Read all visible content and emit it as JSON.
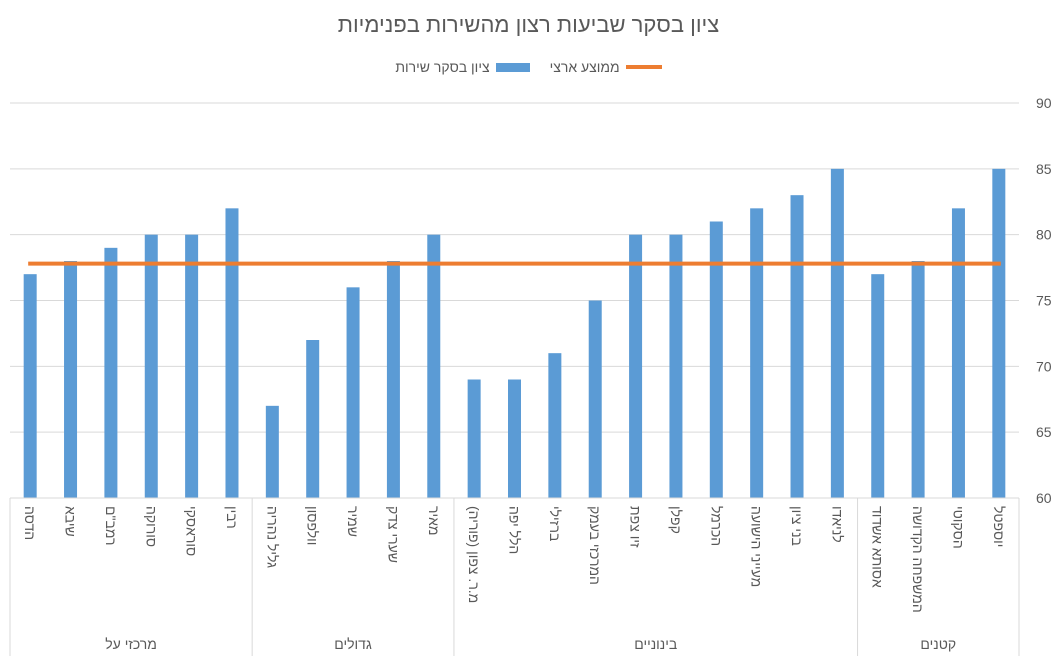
{
  "chart_data": {
    "type": "bar",
    "title": "ציון בסקר שביעות רצון מהשירות בפנימיות",
    "categories": [
      "הדסה",
      "שיבא",
      "רמב\"ם",
      "סורוקה",
      "סוראסקי",
      "רבין",
      "גליל נהריה",
      "וולפסון",
      "שמיר",
      "שערי צדק",
      "מאיר",
      "מ.ר. צפון (פוריה)",
      "הלל יפה",
      "ברזילי",
      "המרכזי בעמק",
      "זיו צפת",
      "קפלן",
      "הכרמל",
      "מעייני הישועה",
      "בני ציון",
      "לניאדו",
      "אסותא אשדוד",
      "המשפחה הקדושה",
      "הסקוטי",
      "יוספטל"
    ],
    "groups": [
      {
        "label": "מרכזי על",
        "count": 6
      },
      {
        "label": "גדולים",
        "count": 5
      },
      {
        "label": "בינוניים",
        "count": 10
      },
      {
        "label": "קטנים",
        "count": 4
      }
    ],
    "series": [
      {
        "name": "ציון בסקר שירות",
        "type": "bar",
        "color": "#5B9BD5",
        "values": [
          77,
          78,
          79,
          80,
          80,
          82,
          67,
          72,
          76,
          78,
          80,
          69,
          69,
          71,
          75,
          80,
          80,
          81,
          82,
          83,
          85,
          77,
          78,
          82,
          85
        ]
      },
      {
        "name": "ממוצע ארצי",
        "type": "line",
        "color": "#ED7D31",
        "value": 77.8
      }
    ],
    "ylim": [
      60,
      90
    ],
    "yticks": [
      "60",
      "65",
      "70",
      "75",
      "80",
      "85",
      "90"
    ],
    "y_axis_position": "right",
    "grid": true,
    "legend_position": "top"
  }
}
